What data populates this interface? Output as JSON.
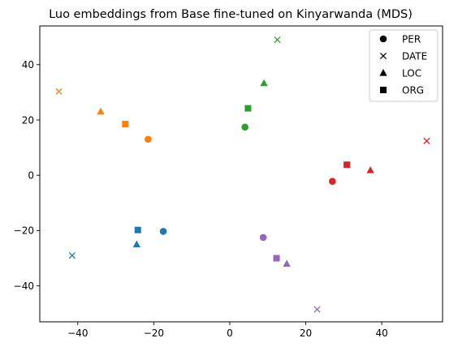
{
  "chart_data": {
    "type": "scatter",
    "title": "Luo embeddings from Base fine-tuned on Kinyarwanda (MDS)",
    "xlabel": "",
    "ylabel": "",
    "xlim": [
      -50,
      56
    ],
    "ylim": [
      -53,
      54
    ],
    "xticks": [
      -40,
      -20,
      0,
      20,
      40
    ],
    "yticks": [
      -40,
      -20,
      0,
      20,
      40
    ],
    "xtick_labels": [
      "−40",
      "−20",
      "0",
      "20",
      "40"
    ],
    "ytick_labels": [
      "−40",
      "−20",
      "0",
      "20",
      "40"
    ],
    "grid": false,
    "legend": {
      "placement": "top-right",
      "entries": [
        {
          "label": "PER",
          "marker": "circle"
        },
        {
          "label": "DATE",
          "marker": "x"
        },
        {
          "label": "LOC",
          "marker": "triangle"
        },
        {
          "label": "ORG",
          "marker": "square"
        }
      ]
    },
    "marker_by_type": {
      "PER": "circle",
      "DATE": "x",
      "LOC": "triangle",
      "ORG": "square"
    },
    "groups": [
      {
        "color": "#1f77b4",
        "points": [
          {
            "type": "PER",
            "x": -17.5,
            "y": -20.3
          },
          {
            "type": "DATE",
            "x": -41.5,
            "y": -29.0
          },
          {
            "type": "LOC",
            "x": -24.5,
            "y": -25.0
          },
          {
            "type": "ORG",
            "x": -24.2,
            "y": -19.8
          }
        ]
      },
      {
        "color": "#ff7f0e",
        "points": [
          {
            "type": "PER",
            "x": -21.5,
            "y": 13.0
          },
          {
            "type": "DATE",
            "x": -45.0,
            "y": 30.3
          },
          {
            "type": "LOC",
            "x": -34.0,
            "y": 23.0
          },
          {
            "type": "ORG",
            "x": -27.5,
            "y": 18.5
          }
        ]
      },
      {
        "color": "#2ca02c",
        "points": [
          {
            "type": "PER",
            "x": 4.0,
            "y": 17.4
          },
          {
            "type": "DATE",
            "x": 12.5,
            "y": 49.0
          },
          {
            "type": "LOC",
            "x": 9.0,
            "y": 33.3
          },
          {
            "type": "ORG",
            "x": 4.8,
            "y": 24.2
          }
        ]
      },
      {
        "color": "#d62728",
        "points": [
          {
            "type": "PER",
            "x": 27.0,
            "y": -2.2
          },
          {
            "type": "DATE",
            "x": 51.8,
            "y": 12.4
          },
          {
            "type": "LOC",
            "x": 37.0,
            "y": 1.8
          },
          {
            "type": "ORG",
            "x": 30.8,
            "y": 3.8
          }
        ]
      },
      {
        "color": "#9467bd",
        "points": [
          {
            "type": "PER",
            "x": 8.8,
            "y": -22.5
          },
          {
            "type": "DATE",
            "x": 23.0,
            "y": -48.5
          },
          {
            "type": "LOC",
            "x": 15.0,
            "y": -32.0
          },
          {
            "type": "ORG",
            "x": 12.3,
            "y": -30.0
          }
        ]
      }
    ]
  }
}
